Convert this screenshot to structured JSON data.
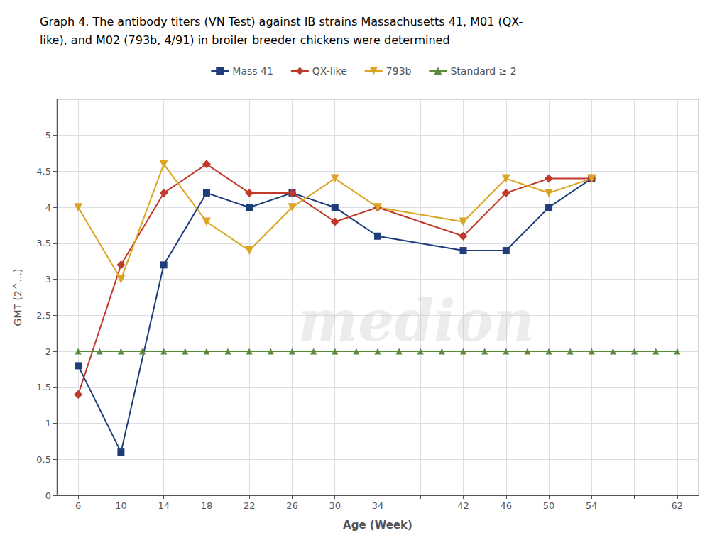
{
  "chart_data": {
    "type": "line",
    "title": "Graph 4. The antibody titers (VN Test) against IB strains Massachusetts 41, M01 (QX-\nlike), and M02 (793b, 4/91) in broiler breeder chickens were determined",
    "xlabel": "Age (Week)",
    "ylabel": "GMT (2^...)",
    "xlim": [
      4,
      64
    ],
    "xticks": [
      6,
      10,
      14,
      18,
      22,
      26,
      30,
      34,
      {
        "value": 38,
        "label": ""
      },
      42,
      46,
      50,
      54,
      {
        "value": 58,
        "label": ""
      },
      62
    ],
    "ylim": [
      0,
      5.5
    ],
    "yticks": [
      0,
      0.5,
      1,
      1.5,
      2,
      2.5,
      3,
      3.5,
      4,
      4.5,
      5
    ],
    "grid": true,
    "legend": "top",
    "annotations": [
      "medion"
    ],
    "series": [
      {
        "name": "Mass 41",
        "color": "#1F3D7A",
        "marker": "square",
        "x": [
          6,
          10,
          14,
          18,
          22,
          26,
          30,
          34,
          42,
          46,
          50,
          54
        ],
        "values": [
          1.8,
          0.6,
          3.2,
          4.2,
          4.0,
          4.2,
          4.0,
          3.6,
          3.4,
          3.4,
          4.0,
          4.4
        ]
      },
      {
        "name": "QX-like",
        "color": "#C0392B",
        "marker": "diamond",
        "x": [
          6,
          10,
          14,
          18,
          22,
          26,
          30,
          34,
          42,
          46,
          50,
          54
        ],
        "values": [
          1.4,
          3.2,
          4.2,
          4.6,
          4.2,
          4.2,
          3.8,
          4.0,
          3.6,
          4.2,
          4.4,
          4.4
        ]
      },
      {
        "name": "793b",
        "color": "#DAA520",
        "marker": "triangle_down",
        "x": [
          6,
          10,
          14,
          18,
          22,
          26,
          30,
          34,
          42,
          46,
          50,
          54
        ],
        "values": [
          4.0,
          3.0,
          4.6,
          3.8,
          3.4,
          4.0,
          4.4,
          4.0,
          3.8,
          4.4,
          4.2,
          4.4
        ]
      },
      {
        "name": "Standard ≥ 2",
        "color": "#5A8A3C",
        "marker": "triangle_up",
        "x": [
          6,
          8,
          10,
          12,
          14,
          16,
          18,
          20,
          22,
          24,
          26,
          28,
          30,
          32,
          34,
          36,
          38,
          40,
          42,
          44,
          46,
          48,
          50,
          52,
          54,
          56,
          58,
          60,
          62
        ],
        "values": [
          2,
          2,
          2,
          2,
          2,
          2,
          2,
          2,
          2,
          2,
          2,
          2,
          2,
          2,
          2,
          2,
          2,
          2,
          2,
          2,
          2,
          2,
          2,
          2,
          2,
          2,
          2,
          2,
          2
        ]
      }
    ]
  }
}
